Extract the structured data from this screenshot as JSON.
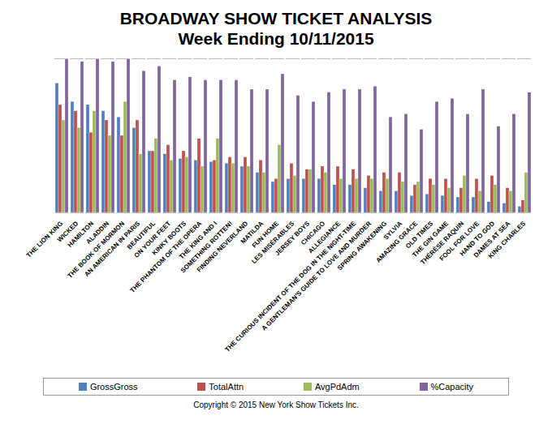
{
  "chart_data": {
    "type": "bar",
    "title": "BROADWAY SHOW TICKET ANALYSIS",
    "subtitle": "Week Ending 10/11/2015",
    "caption": "Copyright © 2015 New York Show Tickets Inc.",
    "categories": [
      "THE LION KING",
      "WICKED",
      "HAMILTON",
      "ALADDIN",
      "THE BOOK OF MORMON",
      "AN AMERICAN IN PARIS",
      "BEAUTIFUL",
      "ON YOUR FEET",
      "KINKY BOOTS",
      "THE PHANTOM OF THE OPERA",
      "THE KING AND I",
      "SOMETHING ROTTEN!",
      "FINDING NEVERLAND",
      "MATILDA",
      "FUN HOME",
      "LES MISÉRABLES",
      "JERSEY BOYS",
      "CHICAGO",
      "ALLEGIANCE",
      "THE CURIOUS INCIDENT OF THE DOG IN THE NIGHT-TIME",
      "A GENTLEMAN'S GUIDE TO LOVE AND MURDER",
      "SPRING AWAKENING",
      "SYLVIA",
      "AMAZING GRACE",
      "OLD TIMES",
      "THE GIN GAME",
      "THÉRÈSE RAQUIN",
      "FOOL FOR LOVE",
      "HAND TO GOD",
      "DAMES AT SEA",
      "KING CHARLES"
    ],
    "series": [
      {
        "name": "GrossGross",
        "color": "#4F81BD",
        "values": [
          84,
          72,
          70,
          66,
          62,
          55,
          40,
          38,
          35,
          34,
          33,
          32,
          30,
          26,
          20,
          22,
          22,
          22,
          18,
          18,
          16,
          14,
          14,
          11,
          12,
          11,
          10,
          10,
          7,
          6,
          4
        ]
      },
      {
        "name": "TotalAttn",
        "color": "#C0504D",
        "values": [
          70,
          66,
          52,
          60,
          50,
          60,
          40,
          44,
          40,
          48,
          34,
          36,
          36,
          34,
          22,
          32,
          28,
          30,
          30,
          28,
          24,
          26,
          26,
          18,
          22,
          22,
          16,
          22,
          24,
          16,
          8
        ]
      },
      {
        "name": "AvgPdAdm",
        "color": "#9BBB59",
        "values": [
          60,
          55,
          66,
          50,
          72,
          38,
          48,
          34,
          36,
          30,
          48,
          32,
          30,
          26,
          44,
          24,
          28,
          26,
          22,
          22,
          22,
          22,
          20,
          20,
          18,
          16,
          24,
          14,
          18,
          14,
          26
        ]
      },
      {
        "name": "%Capacity",
        "color": "#8064A2",
        "values": [
          100,
          98,
          100,
          98,
          100,
          92,
          95,
          86,
          88,
          86,
          86,
          86,
          80,
          80,
          90,
          76,
          72,
          78,
          80,
          80,
          82,
          62,
          64,
          54,
          72,
          74,
          64,
          80,
          56,
          64,
          78
        ]
      }
    ],
    "ylim": [
      0,
      100
    ],
    "tick_labels": "x",
    "legend": "bottom"
  }
}
